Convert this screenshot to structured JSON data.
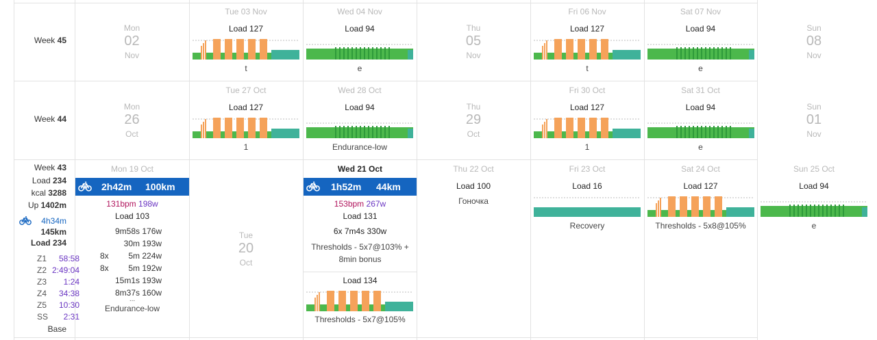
{
  "colors": {
    "green": "#4cb84c",
    "teal": "#3fb29a",
    "orange": "#f5a25a",
    "blue_bar": "#1565c0",
    "bpm": "#b0125b",
    "watts": "#6a35c2",
    "grey_text": "#b8b8b8"
  },
  "weeks": [
    {
      "label": "Week",
      "num": "45",
      "days": [
        {
          "dayname": "Mon",
          "daynum": "02",
          "month": "Nov"
        },
        {
          "header": "Tue 03 Nov",
          "load": "Load 127",
          "workout": "t",
          "chart": "thresholds"
        },
        {
          "header": "Wed 04 Nov",
          "load": "Load 94",
          "workout": "e",
          "chart": "endurance"
        },
        {
          "dayname": "Thu",
          "daynum": "05",
          "month": "Nov"
        },
        {
          "header": "Fri 06 Nov",
          "load": "Load 127",
          "workout": "t",
          "chart": "thresholds"
        },
        {
          "header": "Sat 07 Nov",
          "load": "Load 94",
          "workout": "e",
          "chart": "endurance"
        },
        {
          "dayname": "Sun",
          "daynum": "08",
          "month": "Nov"
        }
      ]
    },
    {
      "label": "Week",
      "num": "44",
      "days": [
        {
          "dayname": "Mon",
          "daynum": "26",
          "month": "Oct"
        },
        {
          "header": "Tue 27 Oct",
          "load": "Load 127",
          "workout": "1",
          "chart": "thresholds"
        },
        {
          "header": "Wed 28 Oct",
          "load": "Load 94",
          "workout": "Endurance-low",
          "chart": "endurance"
        },
        {
          "dayname": "Thu",
          "daynum": "29",
          "month": "Oct"
        },
        {
          "header": "Fri 30 Oct",
          "load": "Load 127",
          "workout": "1",
          "chart": "thresholds"
        },
        {
          "header": "Sat 31 Oct",
          "load": "Load 94",
          "workout": "e",
          "chart": "endurance"
        },
        {
          "dayname": "Sun",
          "daynum": "01",
          "month": "Nov"
        }
      ]
    }
  ],
  "week43": {
    "label": "Week",
    "num": "43",
    "load_label": "Load",
    "load": "234",
    "kcal_label": "kcal",
    "kcal": "3288",
    "up_label": "Up",
    "up": "1402m",
    "ride_time": "4h34m",
    "ride_dist": "145km",
    "load2_label": "Load",
    "load2": "234",
    "zones": [
      {
        "z": "Z1",
        "v": "58:58"
      },
      {
        "z": "Z2",
        "v": "2:49:04"
      },
      {
        "z": "Z3",
        "v": "1:24"
      },
      {
        "z": "Z4",
        "v": "34:38"
      },
      {
        "z": "Z5",
        "v": "10:30"
      },
      {
        "z": "SS",
        "v": "2:31"
      }
    ],
    "phase": "Base",
    "mon": {
      "header": "Mon 19 Oct",
      "time": "2h42m",
      "dist": "100km",
      "bpm": "131bpm",
      "watts": "198w",
      "load": "Load 103",
      "lines": [
        {
          "rep": "",
          "dur": "9m58s",
          "pow": "176w"
        },
        {
          "rep": "",
          "dur": "30m",
          "pow": "193w"
        },
        {
          "rep": "8x",
          "dur": "5m",
          "pow": "224w"
        },
        {
          "rep": "8x",
          "dur": "5m",
          "pow": "192w"
        },
        {
          "rep": "",
          "dur": "15m1s",
          "pow": "193w"
        },
        {
          "rep": "",
          "dur": "8m37s",
          "pow": "160w"
        }
      ],
      "ellipsis": "...",
      "workout": "Endurance-low"
    },
    "tue": {
      "dayname": "Tue",
      "daynum": "20",
      "month": "Oct"
    },
    "wed": {
      "header": "Wed 21 Oct",
      "time": "1h52m",
      "dist": "44km",
      "bpm": "153bpm",
      "watts": "267w",
      "load": "Load 131",
      "intervals": "6x 7m4s 330w",
      "workout": "Thresholds - 5x7@103% + 8min bonus",
      "plan_load": "Load 134",
      "plan_workout": "Thresholds - 5x7@105%"
    },
    "thu": {
      "header": "Thu 22 Oct",
      "load": "Load 100",
      "note": "Гоночка"
    },
    "fri": {
      "header": "Fri 23 Oct",
      "load": "Load 16",
      "workout": "Recovery"
    },
    "sat": {
      "header": "Sat 24 Oct",
      "load": "Load 127",
      "workout": "Thresholds - 5x8@105%"
    },
    "sun": {
      "header": "Sun 25 Oct",
      "load": "Load 94",
      "workout": "e"
    }
  }
}
